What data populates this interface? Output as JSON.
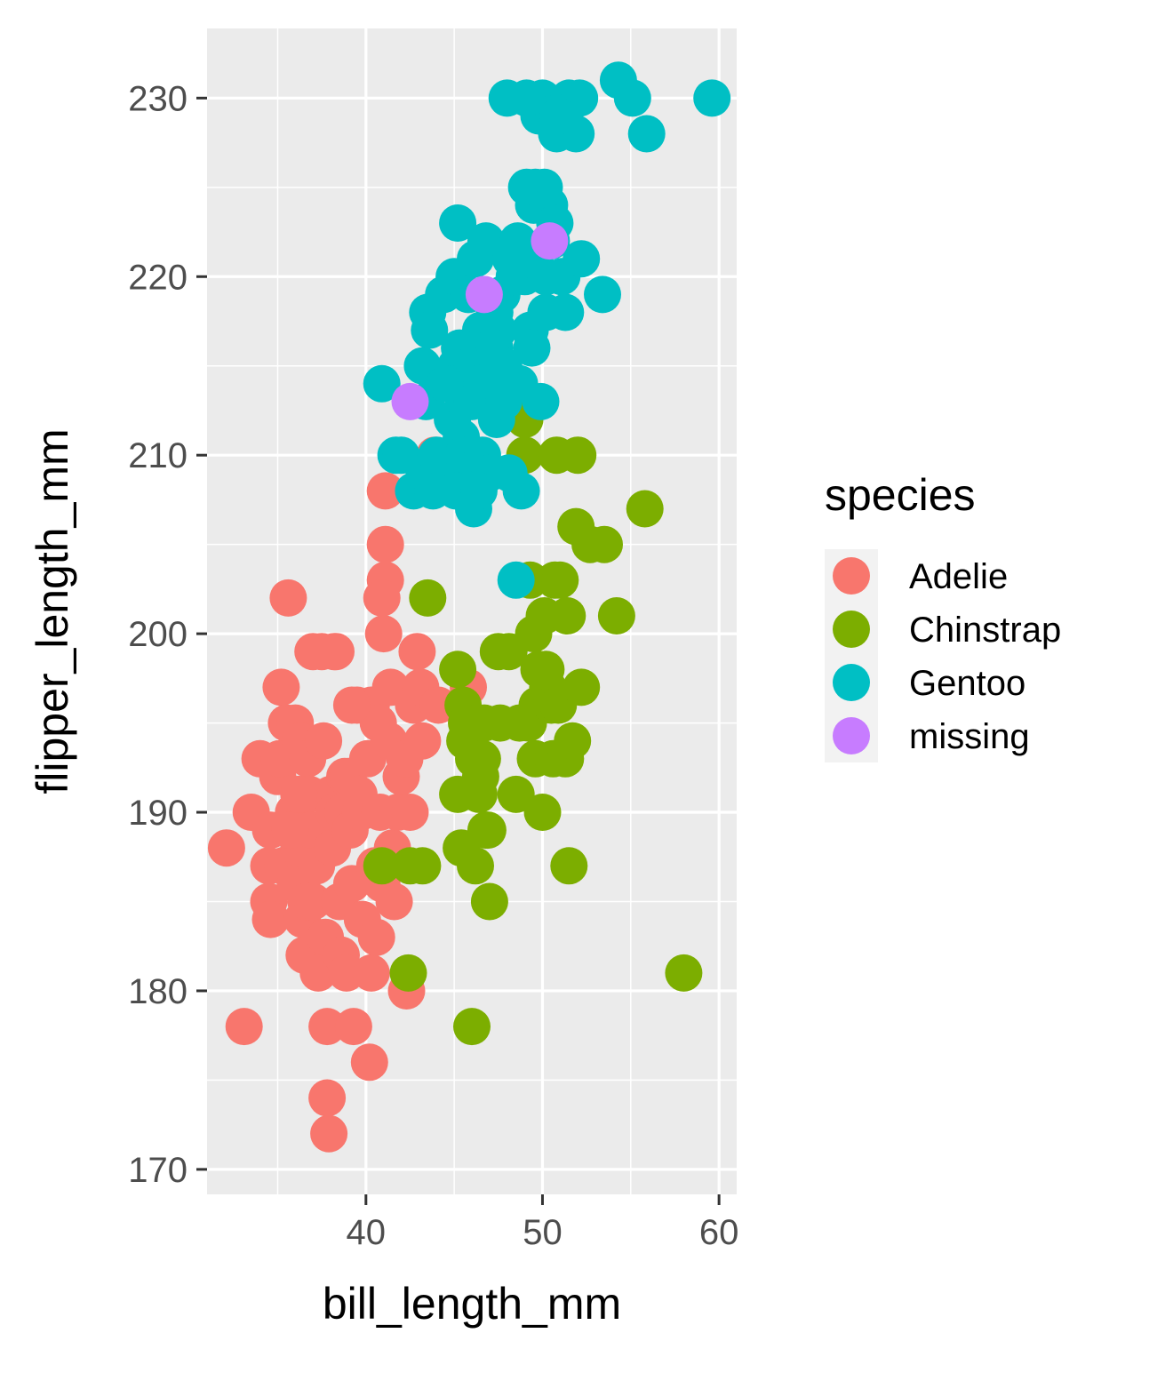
{
  "chart_data": {
    "type": "scatter",
    "title": "",
    "xlabel": "bill_length_mm",
    "ylabel": "flipper_length_mm",
    "xlim": [
      31.0,
      61.0
    ],
    "ylim": [
      168.6,
      233.9
    ],
    "x_ticks": [
      40,
      50,
      60
    ],
    "y_ticks": [
      170,
      180,
      190,
      200,
      210,
      220,
      230
    ],
    "grid": true,
    "background": "#ebebeb",
    "legend": {
      "title": "species",
      "position": "right",
      "entries": [
        "Adelie",
        "Chinstrap",
        "Gentoo",
        "missing"
      ]
    },
    "colors": {
      "Adelie": "#f8766d",
      "Chinstrap": "#7cae00",
      "Gentoo": "#00bfc4",
      "missing": "#c77cff"
    },
    "series": [
      {
        "name": "Adelie",
        "points": [
          [
            32.1,
            188
          ],
          [
            33.1,
            178
          ],
          [
            33.5,
            190
          ],
          [
            34.0,
            193
          ],
          [
            34.5,
            187
          ],
          [
            34.5,
            185
          ],
          [
            34.6,
            184
          ],
          [
            34.6,
            189
          ],
          [
            35.0,
            192
          ],
          [
            35.1,
            193
          ],
          [
            35.2,
            197
          ],
          [
            35.3,
            187
          ],
          [
            35.5,
            195
          ],
          [
            35.7,
            189
          ],
          [
            35.9,
            190
          ],
          [
            36.0,
            186
          ],
          [
            36.0,
            195
          ],
          [
            36.2,
            188
          ],
          [
            36.3,
            194
          ],
          [
            36.4,
            184
          ],
          [
            36.5,
            182
          ],
          [
            36.6,
            185
          ],
          [
            36.7,
            193
          ],
          [
            36.8,
            191
          ],
          [
            36.9,
            189
          ],
          [
            37.0,
            185
          ],
          [
            37.2,
            187
          ],
          [
            37.3,
            181
          ],
          [
            37.5,
            199
          ],
          [
            37.6,
            194
          ],
          [
            37.7,
            183
          ],
          [
            37.8,
            178
          ],
          [
            37.8,
            174
          ],
          [
            37.9,
            172
          ],
          [
            38.0,
            191
          ],
          [
            38.1,
            188
          ],
          [
            38.2,
            190
          ],
          [
            38.3,
            199
          ],
          [
            38.5,
            185
          ],
          [
            38.6,
            182
          ],
          [
            38.7,
            190
          ],
          [
            38.8,
            192
          ],
          [
            38.9,
            181
          ],
          [
            39.0,
            192
          ],
          [
            39.1,
            189
          ],
          [
            39.2,
            186
          ],
          [
            39.3,
            178
          ],
          [
            39.5,
            196
          ],
          [
            39.6,
            191
          ],
          [
            39.7,
            190
          ],
          [
            39.8,
            184
          ],
          [
            40.1,
            193
          ],
          [
            40.2,
            176
          ],
          [
            40.3,
            181
          ],
          [
            40.3,
            196
          ],
          [
            40.5,
            187
          ],
          [
            40.6,
            183
          ],
          [
            40.7,
            195
          ],
          [
            40.8,
            190
          ],
          [
            40.9,
            186
          ],
          [
            41.0,
            200
          ],
          [
            41.1,
            203
          ],
          [
            41.1,
            208
          ],
          [
            41.3,
            194
          ],
          [
            41.4,
            197
          ],
          [
            41.5,
            188
          ],
          [
            41.6,
            185
          ],
          [
            41.8,
            190
          ],
          [
            42.0,
            192
          ],
          [
            42.2,
            193
          ],
          [
            42.3,
            180
          ],
          [
            42.5,
            190
          ],
          [
            42.7,
            196
          ],
          [
            42.9,
            199
          ],
          [
            43.1,
            197
          ],
          [
            43.2,
            194
          ],
          [
            44.1,
            196
          ],
          [
            45.8,
            197
          ],
          [
            39.2,
            196
          ],
          [
            38.2,
            199
          ],
          [
            35.6,
            202
          ],
          [
            41.1,
            205
          ],
          [
            37.0,
            199
          ],
          [
            35.7,
            189
          ],
          [
            36.2,
            191
          ],
          [
            40.9,
            202
          ],
          [
            43.9,
            210
          ]
        ]
      },
      {
        "name": "Chinstrap",
        "points": [
          [
            40.9,
            187
          ],
          [
            42.4,
            181
          ],
          [
            42.5,
            187
          ],
          [
            43.2,
            187
          ],
          [
            43.5,
            202
          ],
          [
            45.2,
            198
          ],
          [
            45.2,
            191
          ],
          [
            45.4,
            188
          ],
          [
            45.5,
            196
          ],
          [
            45.6,
            194
          ],
          [
            45.7,
            195
          ],
          [
            46.0,
            178
          ],
          [
            46.1,
            193
          ],
          [
            46.2,
            187
          ],
          [
            46.4,
            191
          ],
          [
            46.5,
            192
          ],
          [
            46.6,
            193
          ],
          [
            46.7,
            195
          ],
          [
            46.8,
            189
          ],
          [
            46.9,
            189
          ],
          [
            47.0,
            185
          ],
          [
            47.5,
            199
          ],
          [
            47.6,
            195
          ],
          [
            48.1,
            199
          ],
          [
            48.5,
            191
          ],
          [
            48.7,
            195
          ],
          [
            49.0,
            210
          ],
          [
            49.0,
            212
          ],
          [
            49.2,
            195
          ],
          [
            49.3,
            203
          ],
          [
            49.5,
            200
          ],
          [
            49.6,
            193
          ],
          [
            49.7,
            196
          ],
          [
            49.8,
            198
          ],
          [
            50.0,
            190
          ],
          [
            50.1,
            201
          ],
          [
            50.2,
            198
          ],
          [
            50.3,
            197
          ],
          [
            50.5,
            196
          ],
          [
            50.6,
            193
          ],
          [
            50.7,
            203
          ],
          [
            50.8,
            210
          ],
          [
            50.9,
            196
          ],
          [
            51.0,
            203
          ],
          [
            51.3,
            193
          ],
          [
            51.4,
            201
          ],
          [
            51.5,
            187
          ],
          [
            51.7,
            194
          ],
          [
            51.9,
            206
          ],
          [
            52.0,
            210
          ],
          [
            52.2,
            197
          ],
          [
            52.7,
            205
          ],
          [
            53.5,
            205
          ],
          [
            54.2,
            201
          ],
          [
            55.8,
            207
          ],
          [
            58.0,
            181
          ]
        ]
      },
      {
        "name": "Gentoo",
        "points": [
          [
            40.9,
            214
          ],
          [
            41.7,
            210
          ],
          [
            42.0,
            210
          ],
          [
            42.7,
            208
          ],
          [
            43.2,
            215
          ],
          [
            43.3,
            209
          ],
          [
            43.4,
            213
          ],
          [
            43.5,
            218
          ],
          [
            43.6,
            217
          ],
          [
            43.8,
            208
          ],
          [
            44.0,
            210
          ],
          [
            44.4,
            219
          ],
          [
            44.5,
            214
          ],
          [
            44.9,
            212
          ],
          [
            45.0,
            220
          ],
          [
            45.1,
            215
          ],
          [
            45.2,
            209
          ],
          [
            45.3,
            216
          ],
          [
            45.4,
            211
          ],
          [
            45.5,
            210
          ],
          [
            45.6,
            213
          ],
          [
            45.7,
            214
          ],
          [
            45.8,
            219
          ],
          [
            46.1,
            207
          ],
          [
            46.2,
            221
          ],
          [
            46.3,
            215
          ],
          [
            46.4,
            216
          ],
          [
            46.5,
            217
          ],
          [
            46.6,
            210
          ],
          [
            46.8,
            222
          ],
          [
            46.9,
            217
          ],
          [
            47.0,
            209
          ],
          [
            47.2,
            214
          ],
          [
            47.3,
            216
          ],
          [
            47.4,
            212
          ],
          [
            47.5,
            217
          ],
          [
            47.6,
            215
          ],
          [
            47.7,
            219
          ],
          [
            47.8,
            215
          ],
          [
            48.1,
            209
          ],
          [
            48.2,
            221
          ],
          [
            48.4,
            220
          ],
          [
            48.5,
            203
          ],
          [
            48.6,
            222
          ],
          [
            48.7,
            214
          ],
          [
            48.8,
            208
          ],
          [
            49.0,
            220
          ],
          [
            49.1,
            225
          ],
          [
            49.2,
            221
          ],
          [
            49.3,
            217
          ],
          [
            49.4,
            216
          ],
          [
            49.5,
            224
          ],
          [
            49.6,
            225
          ],
          [
            49.8,
            229
          ],
          [
            50.0,
            230
          ],
          [
            50.1,
            225
          ],
          [
            50.2,
            218
          ],
          [
            50.4,
            224
          ],
          [
            50.5,
            222
          ],
          [
            50.7,
            223
          ],
          [
            50.8,
            228
          ],
          [
            51.1,
            220
          ],
          [
            51.3,
            218
          ],
          [
            51.5,
            230
          ],
          [
            51.9,
            228
          ],
          [
            52.1,
            230
          ],
          [
            52.2,
            221
          ],
          [
            53.4,
            219
          ],
          [
            54.3,
            231
          ],
          [
            55.1,
            230
          ],
          [
            55.9,
            228
          ],
          [
            59.6,
            230
          ],
          [
            45.1,
            208
          ],
          [
            46.0,
            213
          ],
          [
            46.4,
            208
          ],
          [
            45.2,
            223
          ],
          [
            47.3,
            218
          ],
          [
            49.9,
            213
          ],
          [
            48.0,
            230
          ],
          [
            49.1,
            230
          ],
          [
            50.2,
            220
          ],
          [
            50.9,
            229
          ],
          [
            46.5,
            214
          ],
          [
            44.5,
            214
          ],
          [
            47.8,
            213
          ]
        ]
      },
      {
        "name": "missing",
        "points": [
          [
            42.5,
            213
          ],
          [
            46.7,
            219
          ],
          [
            50.4,
            222
          ]
        ]
      }
    ]
  }
}
